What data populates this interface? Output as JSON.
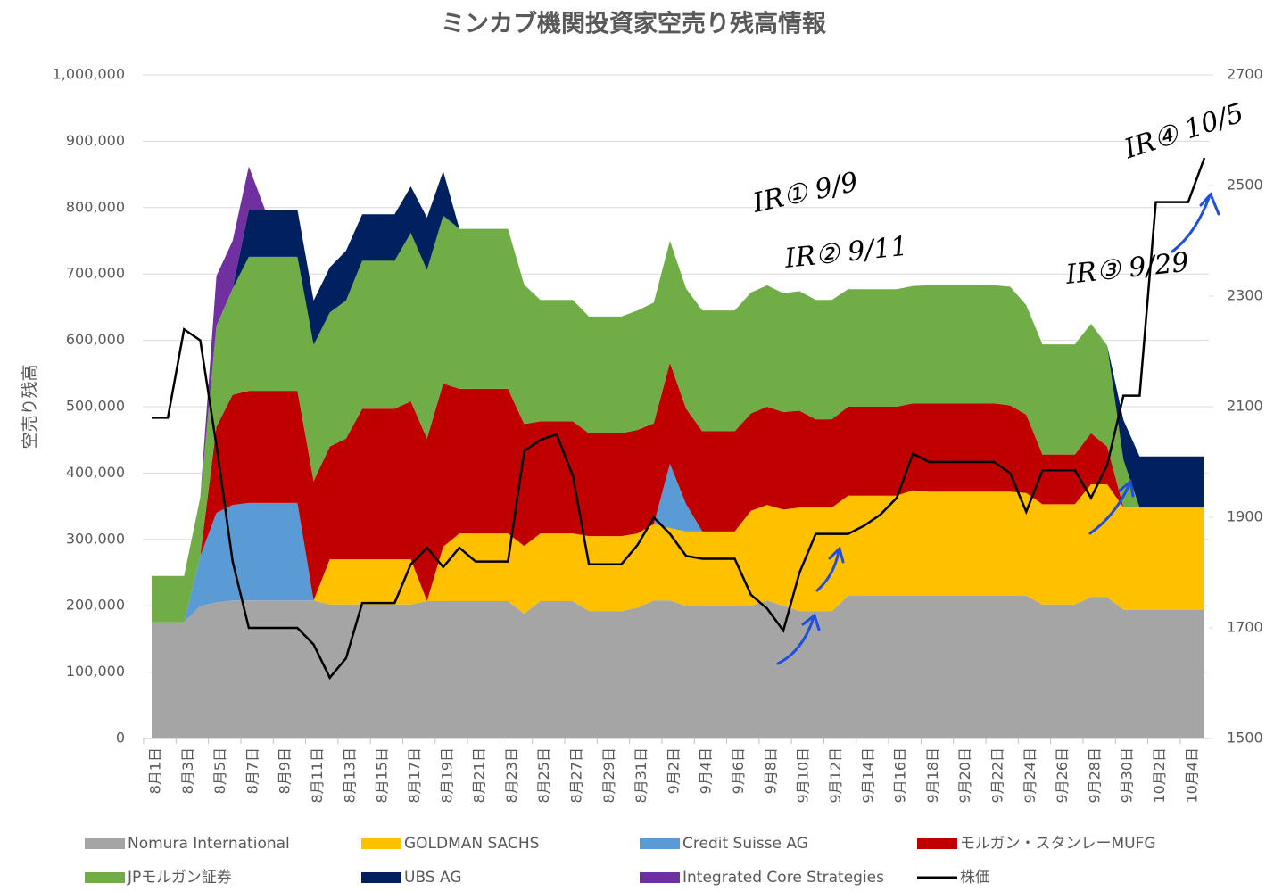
{
  "chart_data": {
    "type": "stacked_area",
    "title": "ミンカブ機関投資家空売り残高情報",
    "y_label": "空売り残高",
    "categories": [
      "8月1日",
      null,
      "8月3日",
      null,
      "8月5日",
      null,
      "8月7日",
      null,
      "8月9日",
      null,
      "8月11日",
      null,
      "8月13日",
      null,
      "8月15日",
      null,
      "8月17日",
      null,
      "8月19日",
      null,
      "8月21日",
      null,
      "8月23日",
      null,
      "8月25日",
      null,
      "8月27日",
      null,
      "8月29日",
      null,
      "8月31日",
      null,
      "9月2日",
      null,
      "9月4日",
      null,
      "9月6日",
      null,
      "9月8日",
      null,
      "9月10日",
      null,
      "9月12日",
      null,
      "9月14日",
      null,
      "9月16日",
      null,
      "9月18日",
      null,
      "9月20日",
      null,
      "9月22日",
      null,
      "9月24日",
      null,
      "9月26日",
      null,
      "9月28日",
      null,
      "9月30日",
      null,
      "10月2日",
      null,
      "10月4日",
      null
    ],
    "ylim": [
      0,
      1000000
    ],
    "yticks": [
      0,
      {
        "value": 100000,
        "label": "100,000"
      },
      {
        "value": 200000,
        "label": "200,000"
      },
      {
        "value": 300000,
        "label": "300,000"
      },
      {
        "value": 400000,
        "label": "400,000"
      },
      {
        "value": 500000,
        "label": "500,000"
      },
      {
        "value": 600000,
        "label": "600,000"
      },
      {
        "value": 700000,
        "label": "700,000"
      },
      {
        "value": 800000,
        "label": "800,000"
      },
      {
        "value": 900000,
        "label": "900,000"
      },
      {
        "value": 1000000,
        "label": "1,000,000"
      }
    ],
    "y2lim": [
      1500,
      2700
    ],
    "y2ticks": [
      1500,
      1700,
      1900,
      2100,
      2300,
      2500,
      2700
    ],
    "grid": true,
    "legend": "bottom",
    "series": [
      {
        "name": "Nomura International",
        "color": "#a5a5a5",
        "values": [
          175000,
          175000,
          175000,
          200000,
          205000,
          208000,
          208000,
          208000,
          208000,
          208000,
          208000,
          202000,
          202000,
          202000,
          202000,
          202000,
          202000,
          207000,
          207000,
          207000,
          207000,
          207000,
          207000,
          188000,
          207000,
          207000,
          207000,
          192000,
          192000,
          192000,
          197000,
          208000,
          208000,
          200000,
          200000,
          200000,
          200000,
          200000,
          208000,
          200000,
          192000,
          192000,
          192000,
          215000,
          215000,
          215000,
          215000,
          215000,
          215000,
          215000,
          215000,
          215000,
          215000,
          215000,
          215000,
          202000,
          202000,
          202000,
          213000,
          213000,
          194000,
          194000,
          194000,
          194000,
          194000,
          194000
        ]
      },
      {
        "name": "GOLDMAN SACHS",
        "color": "#ffc000",
        "values": [
          0,
          0,
          0,
          0,
          0,
          0,
          0,
          0,
          0,
          0,
          0,
          68000,
          68000,
          68000,
          68000,
          68000,
          68000,
          0,
          82000,
          102000,
          102000,
          102000,
          102000,
          102000,
          102000,
          102000,
          102000,
          113000,
          113000,
          113000,
          112000,
          115000,
          109000,
          112000,
          112000,
          112000,
          112000,
          143000,
          144000,
          145000,
          156000,
          156000,
          156000,
          151000,
          151000,
          151000,
          151000,
          159000,
          157000,
          157000,
          157000,
          157000,
          157000,
          157000,
          155000,
          151000,
          151000,
          151000,
          170000,
          170000,
          154000,
          154000,
          154000,
          154000,
          154000,
          154000
        ]
      },
      {
        "name": "Credit Suisse AG",
        "color": "#5b9bd5",
        "values": [
          0,
          0,
          0,
          75000,
          135000,
          144000,
          147000,
          147000,
          147000,
          147000,
          0,
          0,
          0,
          0,
          0,
          0,
          0,
          0,
          0,
          0,
          0,
          0,
          0,
          0,
          0,
          0,
          0,
          0,
          0,
          0,
          0,
          0,
          97000,
          41000,
          0,
          0,
          0,
          0,
          0,
          0,
          0,
          0,
          0,
          0,
          0,
          0,
          0,
          0,
          0,
          0,
          0,
          0,
          0,
          0,
          0,
          0,
          0,
          0,
          0,
          0,
          0,
          0,
          0,
          0,
          0,
          0
        ]
      },
      {
        "name": "モルガン・スタンレーMUFG",
        "color": "#c00000",
        "values": [
          0,
          0,
          0,
          0,
          130000,
          166000,
          169000,
          169000,
          169000,
          169000,
          180000,
          170000,
          182000,
          227000,
          227000,
          227000,
          238000,
          245000,
          246000,
          218000,
          218000,
          218000,
          218000,
          184000,
          169000,
          169000,
          169000,
          155000,
          155000,
          155000,
          156000,
          152000,
          152000,
          144000,
          151000,
          151000,
          151000,
          147000,
          148000,
          147000,
          146000,
          133000,
          133000,
          134000,
          134000,
          134000,
          134000,
          131000,
          133000,
          133000,
          133000,
          133000,
          133000,
          130000,
          118000,
          75000,
          75000,
          75000,
          77000,
          57000,
          0,
          0,
          0,
          0,
          0,
          0
        ]
      },
      {
        "name": "JPモルガン証券",
        "color": "#70ad47",
        "values": [
          70000,
          70000,
          70000,
          88000,
          152000,
          160000,
          202000,
          202000,
          202000,
          202000,
          205000,
          202000,
          208000,
          223000,
          223000,
          223000,
          254000,
          254000,
          253000,
          241000,
          241000,
          241000,
          241000,
          210000,
          183000,
          183000,
          183000,
          176000,
          176000,
          176000,
          180000,
          182000,
          184000,
          181000,
          182000,
          182000,
          182000,
          182000,
          183000,
          179000,
          180000,
          180000,
          180000,
          177000,
          177000,
          177000,
          177000,
          177000,
          178000,
          178000,
          178000,
          178000,
          178000,
          179000,
          165000,
          166000,
          166000,
          166000,
          165000,
          152000,
          72000,
          0,
          0,
          0,
          0,
          0
        ]
      },
      {
        "name": "UBS AG",
        "color": "#002060",
        "values": [
          0,
          0,
          0,
          0,
          0,
          0,
          71000,
          71000,
          71000,
          71000,
          67000,
          68000,
          75000,
          70000,
          70000,
          70000,
          70000,
          79000,
          67000,
          0,
          0,
          0,
          0,
          0,
          0,
          0,
          0,
          0,
          0,
          0,
          0,
          0,
          0,
          0,
          0,
          0,
          0,
          0,
          0,
          0,
          0,
          0,
          0,
          0,
          0,
          0,
          0,
          0,
          0,
          0,
          0,
          0,
          0,
          0,
          0,
          0,
          0,
          0,
          0,
          0,
          60000,
          77000,
          77000,
          77000,
          77000,
          77000
        ]
      },
      {
        "name": "Integrated Core Strategies",
        "color": "#7030a0",
        "values": [
          0,
          0,
          0,
          0,
          75000,
          72000,
          65000,
          0,
          0,
          0,
          0,
          0,
          0,
          0,
          0,
          0,
          0,
          0,
          0,
          0,
          0,
          0,
          0,
          0,
          0,
          0,
          0,
          0,
          0,
          0,
          0,
          0,
          0,
          0,
          0,
          0,
          0,
          0,
          0,
          0,
          0,
          0,
          0,
          0,
          0,
          0,
          0,
          0,
          0,
          0,
          0,
          0,
          0,
          0,
          0,
          0,
          0,
          0,
          0,
          0,
          0,
          0,
          0,
          0,
          0,
          0
        ]
      },
      {
        "name": "株価",
        "color": "#000000",
        "axis": "y2",
        "values": [
          2080,
          2080,
          2240,
          2220,
          2030,
          1820,
          1700,
          1700,
          1700,
          1700,
          1670,
          1610,
          1645,
          1745,
          1745,
          1745,
          1815,
          1845,
          1810,
          1845,
          1820,
          1820,
          1820,
          2020,
          2040,
          2050,
          1975,
          1815,
          1815,
          1815,
          1850,
          1900,
          1870,
          1830,
          1825,
          1825,
          1825,
          1760,
          1735,
          1695,
          1800,
          1870,
          1870,
          1870,
          1885,
          1905,
          1935,
          2015,
          2000,
          2000,
          2000,
          2000,
          2000,
          1980,
          1910,
          1985,
          1985,
          1985,
          1935,
          1995,
          2120,
          2120,
          2470,
          2470,
          2470,
          2550
        ]
      }
    ],
    "annotations": [
      "IR① 9/9",
      "IR② 9/11",
      "IR③ 9/29",
      "IR④ 10/5"
    ]
  }
}
